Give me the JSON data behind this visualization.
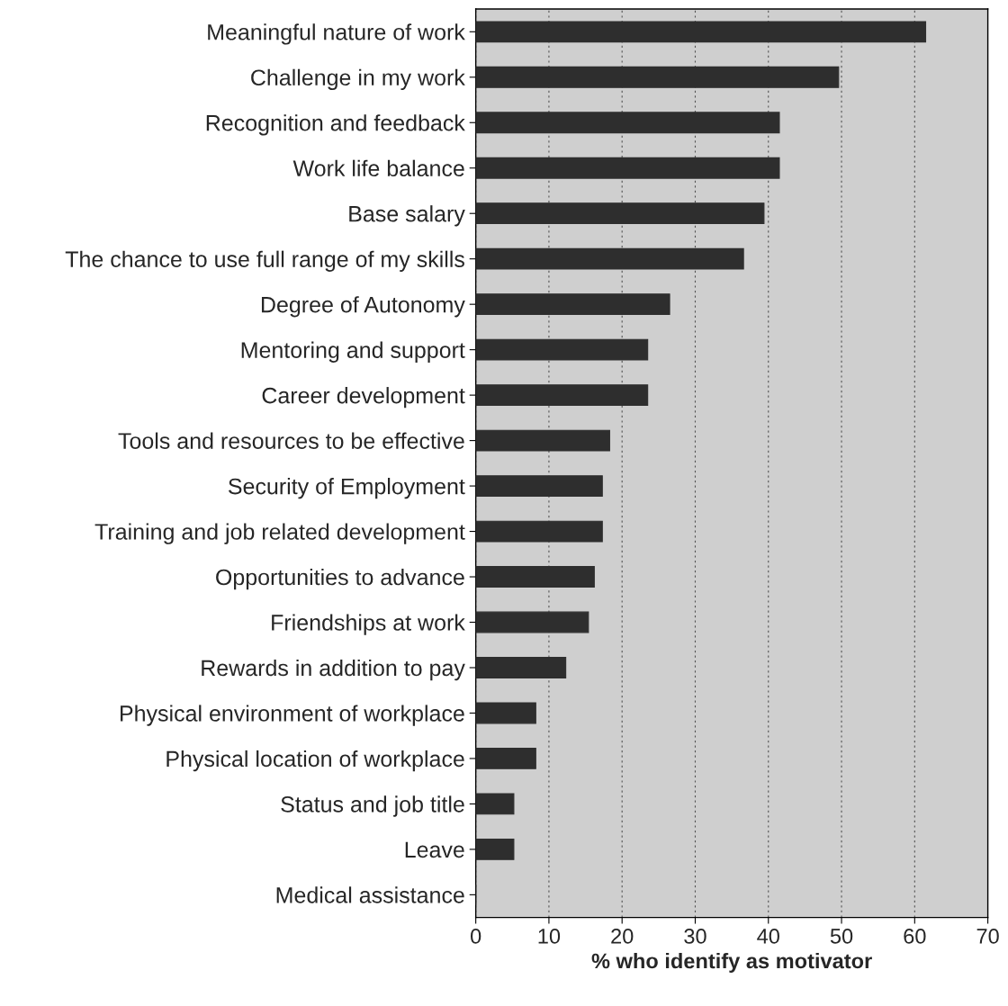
{
  "chart_data": {
    "type": "bar",
    "orientation": "horizontal",
    "xlabel": "% who identify as motivator",
    "categories": [
      "Meaningful nature of work",
      "Challenge in my work",
      "Recognition and feedback",
      "Work life balance",
      "Base salary",
      "The chance to use full range of my skills",
      "Degree of Autonomy",
      "Mentoring and support",
      "Career development",
      "Tools and resources to be effective",
      "Security of Employment",
      "Training and job related development",
      "Opportunities to advance",
      "Friendships at work",
      "Rewards in addition to pay",
      "Physical environment of workplace",
      "Physical location of workplace",
      "Status and job title",
      "Leave",
      "Medical assistance"
    ],
    "values": [
      61.5,
      49.6,
      41.5,
      41.5,
      39.4,
      36.6,
      26.5,
      23.5,
      23.5,
      18.3,
      17.3,
      17.3,
      16.2,
      15.4,
      12.3,
      8.2,
      8.2,
      5.2,
      5.2,
      0
    ],
    "color": "#2e2e2e",
    "xlim": [
      0,
      70
    ],
    "xticks": [
      0,
      10,
      20,
      30,
      40,
      50,
      60,
      70
    ],
    "grid": "x",
    "legend": false
  }
}
